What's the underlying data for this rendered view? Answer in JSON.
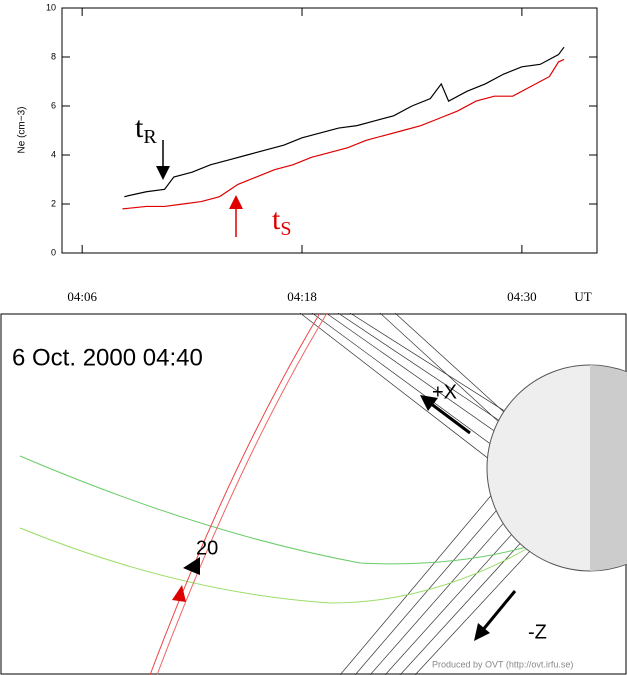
{
  "chart_data": {
    "type": "line",
    "y_label": "Ne (cm−3)",
    "x_label": "UT",
    "xlim": [
      4.9,
      34.1
    ],
    "ylim": [
      0,
      10
    ],
    "xticks": [
      {
        "value": 6,
        "label": "04:06"
      },
      {
        "value": 18,
        "label": "04:18"
      },
      {
        "value": 30,
        "label": "04:30"
      }
    ],
    "yticks": [
      0,
      2,
      4,
      6,
      8,
      10
    ],
    "series": [
      {
        "name": "t",
        "sub": "R",
        "color": "#000000",
        "x": [
          8.3,
          9.5,
          10.5,
          11,
          12,
          13,
          14,
          15,
          16,
          17,
          18,
          19,
          20,
          21,
          22,
          23,
          24,
          25,
          25.6,
          26,
          27,
          28,
          29,
          30,
          31,
          32,
          32.3
        ],
        "values": [
          2.3,
          2.5,
          2.6,
          3.1,
          3.3,
          3.6,
          3.8,
          4.0,
          4.2,
          4.4,
          4.7,
          4.9,
          5.1,
          5.2,
          5.4,
          5.6,
          6.0,
          6.3,
          6.9,
          6.2,
          6.6,
          6.9,
          7.3,
          7.6,
          7.7,
          8.1,
          8.4
        ]
      },
      {
        "name": "t",
        "sub": "S",
        "color": "#e00000",
        "x": [
          8.2,
          9.5,
          10.5,
          11.5,
          12.5,
          13.5,
          14.5,
          15.5,
          16.5,
          17.5,
          18.5,
          19.5,
          20.5,
          21.5,
          22.5,
          23.5,
          24.5,
          25.5,
          26.5,
          27.5,
          28.5,
          29.5,
          30.5,
          31.5,
          32,
          32.3
        ],
        "values": [
          1.8,
          1.9,
          1.9,
          2.0,
          2.1,
          2.3,
          2.8,
          3.1,
          3.4,
          3.6,
          3.9,
          4.1,
          4.3,
          4.6,
          4.8,
          5.0,
          5.2,
          5.5,
          5.8,
          6.2,
          6.4,
          6.4,
          6.8,
          7.2,
          7.8,
          7.9
        ]
      }
    ]
  },
  "orbit_plot": {
    "title": "6 Oct. 2000  04:40",
    "x_axis": "+X",
    "z_axis": "-Z",
    "marker": "20",
    "credit": "Produced by OVT (http://ovt.irfu.se)"
  }
}
